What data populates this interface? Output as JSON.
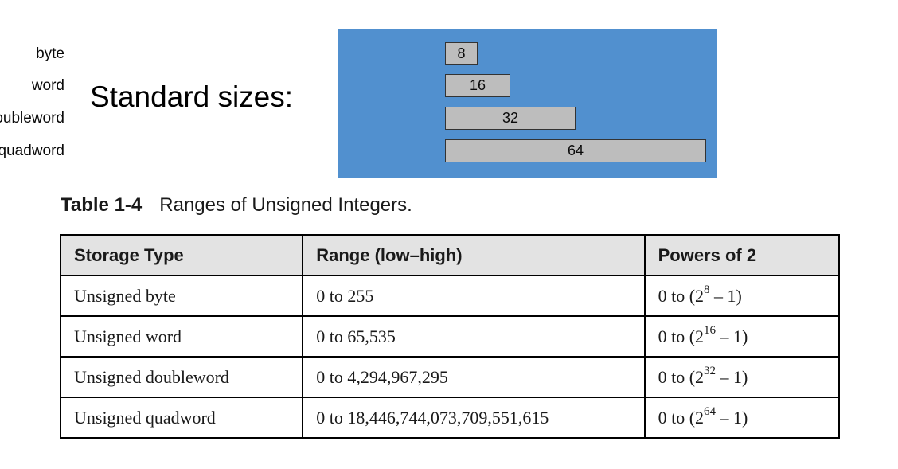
{
  "heading": "Standard sizes:",
  "sizes": [
    {
      "label": "byte",
      "bits": "8"
    },
    {
      "label": "word",
      "bits": "16"
    },
    {
      "label": "doubleword",
      "bits": "32"
    },
    {
      "label": "quadword",
      "bits": "64"
    }
  ],
  "caption": {
    "number": "Table 1-4",
    "title": "Ranges of Unsigned Integers."
  },
  "table": {
    "headers": [
      "Storage Type",
      "Range (low–high)",
      "Powers of 2"
    ],
    "rows": [
      {
        "type": "Unsigned byte",
        "range": "0 to 255",
        "pow_prefix": "0 to (2",
        "pow_exp": "8",
        "pow_suffix": " – 1)"
      },
      {
        "type": "Unsigned word",
        "range": "0 to 65,535",
        "pow_prefix": "0 to (2",
        "pow_exp": "16",
        "pow_suffix": " – 1)"
      },
      {
        "type": "Unsigned doubleword",
        "range": "0 to 4,294,967,295",
        "pow_prefix": "0 to (2",
        "pow_exp": "32",
        "pow_suffix": " – 1)"
      },
      {
        "type": "Unsigned quadword",
        "range": "0 to 18,446,744,073,709,551,615",
        "pow_prefix": "0 to (2",
        "pow_exp": "64",
        "pow_suffix": " – 1)"
      }
    ]
  },
  "colors": {
    "panel": "#5190cf",
    "box": "#bdbdbd",
    "header_bg": "#e3e3e3"
  }
}
